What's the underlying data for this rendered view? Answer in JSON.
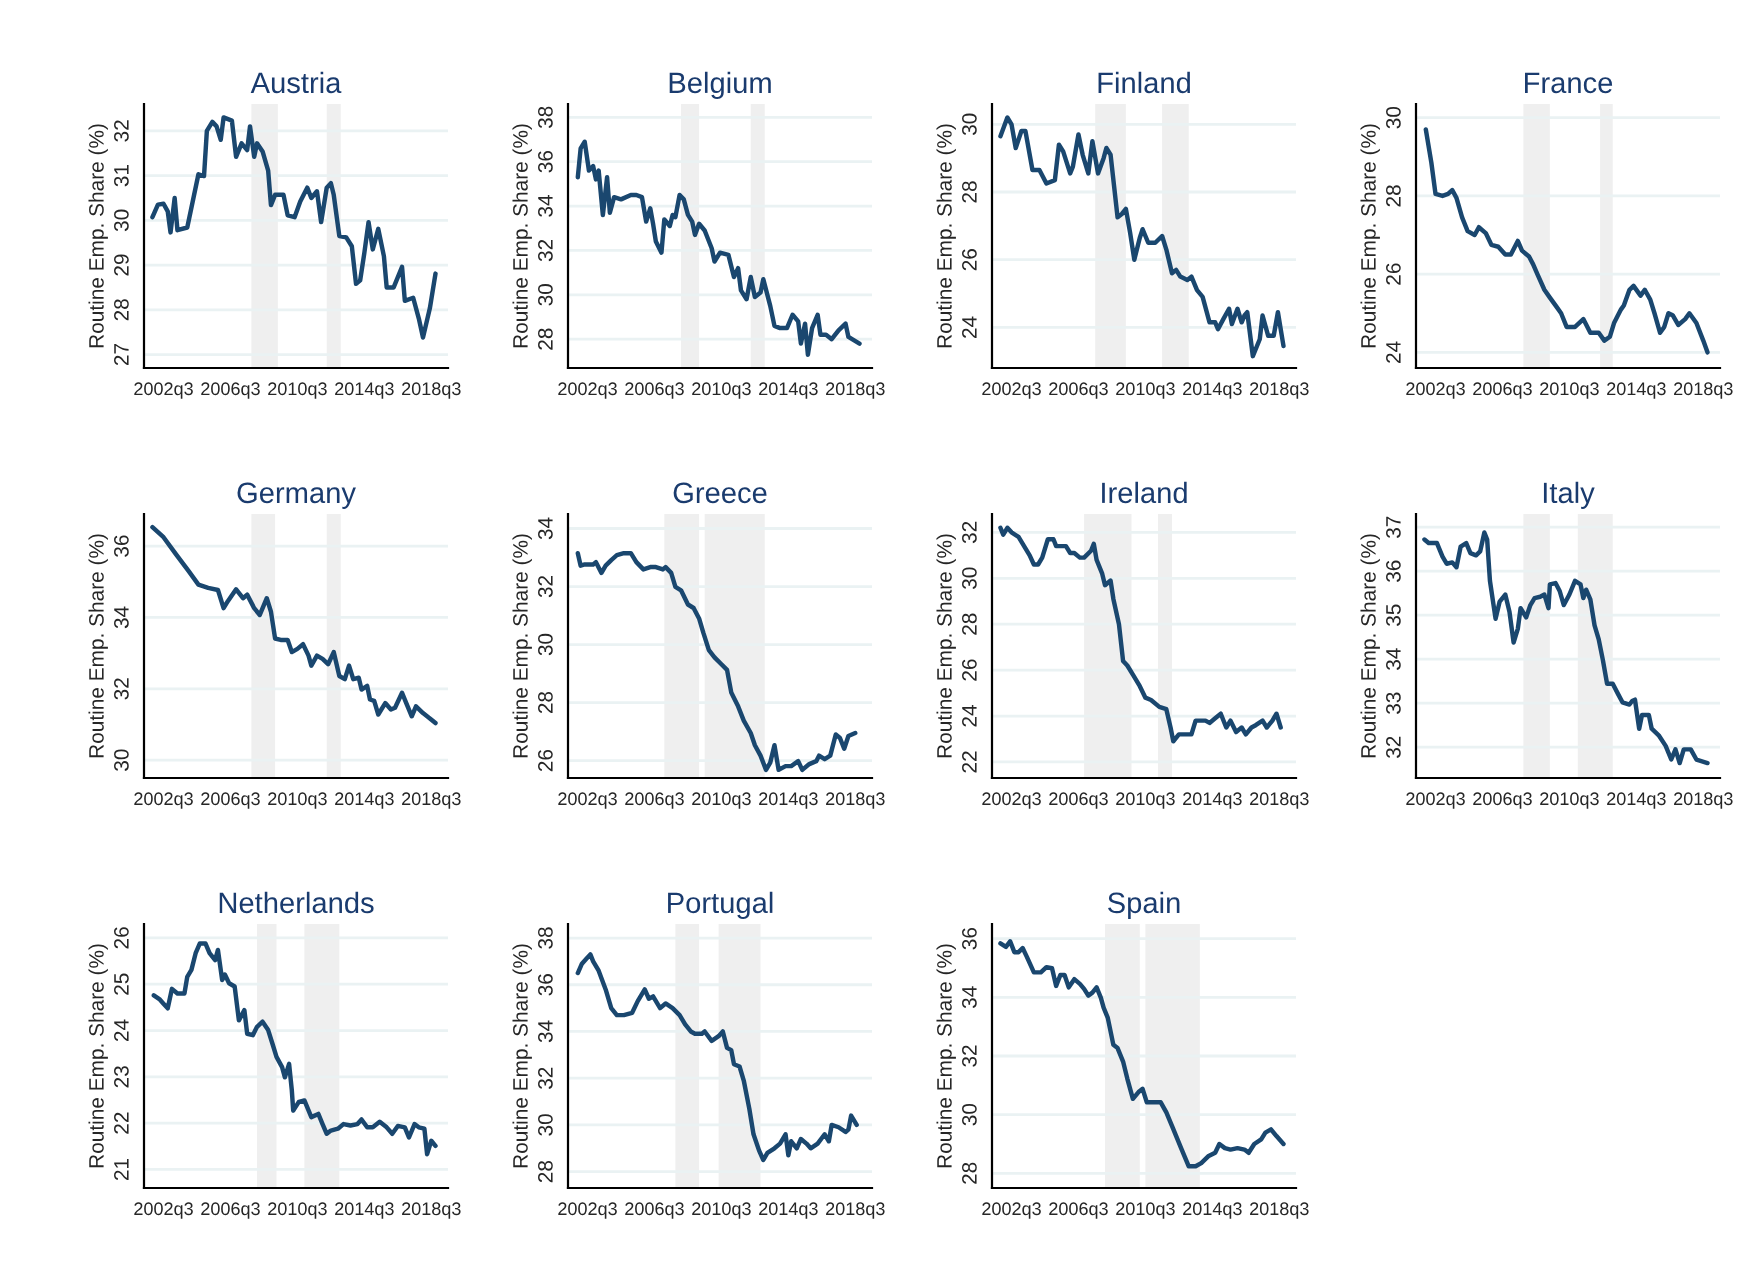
{
  "chart_data": [
    {
      "type": "line",
      "title": "Austria",
      "ylabel": "Routine Emp. Share (%)",
      "grid": "y",
      "xlim": [
        "2001-05",
        "2019-07"
      ],
      "ylim": [
        26.7,
        32.6
      ],
      "yticks": [
        27,
        28,
        29,
        30,
        31,
        32
      ],
      "xticks": [
        {
          "value": "2002-07",
          "label": "2002q3"
        },
        {
          "value": "2006-07",
          "label": "2006q3"
        },
        {
          "value": "2010-07",
          "label": "2010q3"
        },
        {
          "value": "2014-07",
          "label": "2014q3"
        },
        {
          "value": "2018-07",
          "label": "2018q3"
        }
      ],
      "bands": [
        {
          "axis": "x",
          "from": "2007-10",
          "to": "2009-05",
          "color": "#efefef"
        },
        {
          "axis": "x",
          "from": "2012-04",
          "to": "2013-02",
          "color": "#efefef"
        }
      ],
      "x": [
        "2001-11",
        "2002-03",
        "2002-07",
        "2002-10",
        "2002-12",
        "2003-03",
        "2003-05",
        "2003-12",
        "2004-08",
        "2004-12",
        "2005-02",
        "2005-06",
        "2005-09",
        "2005-12",
        "2006-02",
        "2006-08",
        "2006-11",
        "2007-03",
        "2007-07",
        "2007-09",
        "2007-12",
        "2008-02",
        "2008-06",
        "2008-10",
        "2008-12",
        "2009-03",
        "2009-09",
        "2009-12",
        "2010-05",
        "2010-09",
        "2011-02",
        "2011-05",
        "2011-09",
        "2011-12",
        "2012-04",
        "2012-07",
        "2012-09",
        "2013-01",
        "2013-06",
        "2013-10",
        "2014-01",
        "2014-04",
        "2014-07",
        "2014-10",
        "2015-01",
        "2015-05",
        "2015-09",
        "2015-11",
        "2016-04",
        "2016-10",
        "2016-12",
        "2017-06",
        "2017-10",
        "2018-01",
        "2018-06",
        "2018-10"
      ],
      "series": [
        {
          "color": "#1a476f",
          "values": [
            30.07,
            30.35,
            30.37,
            30.2,
            29.73,
            30.5,
            29.78,
            29.84,
            31.03,
            30.99,
            32.0,
            32.2,
            32.1,
            31.8,
            32.3,
            32.23,
            31.42,
            31.72,
            31.57,
            32.1,
            31.42,
            31.72,
            31.54,
            31.11,
            30.34,
            30.57,
            30.57,
            30.11,
            30.07,
            30.42,
            30.73,
            30.5,
            30.65,
            29.96,
            30.73,
            30.83,
            30.57,
            29.65,
            29.62,
            29.42,
            28.58,
            28.66,
            29.27,
            29.96,
            29.35,
            29.81,
            29.2,
            28.5,
            28.5,
            28.96,
            28.2,
            28.27,
            27.81,
            27.38,
            28.04,
            28.81
          ]
        }
      ]
    },
    {
      "type": "line",
      "title": "Belgium",
      "ylabel": "Routine Emp. Share (%)",
      "grid": "y",
      "xlim": [
        "2001-05",
        "2019-07"
      ],
      "ylim": [
        26.7,
        38.6
      ],
      "yticks": [
        28,
        30,
        32,
        34,
        36,
        38
      ],
      "xticks": [
        {
          "value": "2002-07",
          "label": "2002q3"
        },
        {
          "value": "2006-07",
          "label": "2006q3"
        },
        {
          "value": "2010-07",
          "label": "2010q3"
        },
        {
          "value": "2014-07",
          "label": "2014q3"
        },
        {
          "value": "2018-07",
          "label": "2018q3"
        }
      ],
      "bands": [
        {
          "axis": "x",
          "from": "2008-02",
          "to": "2009-03",
          "color": "#efefef"
        },
        {
          "axis": "x",
          "from": "2012-04",
          "to": "2013-02",
          "color": "#efefef"
        }
      ],
      "x": [
        "2001-12",
        "2002-02",
        "2002-05",
        "2002-08",
        "2002-11",
        "2003-01",
        "2003-03",
        "2003-06",
        "2003-09",
        "2003-11",
        "2004-02",
        "2004-07",
        "2005-02",
        "2005-06",
        "2005-10",
        "2006-01",
        "2006-04",
        "2006-06",
        "2006-08",
        "2006-12",
        "2007-02",
        "2007-06",
        "2007-08",
        "2007-10",
        "2008-01",
        "2008-04",
        "2008-07",
        "2008-10",
        "2008-12",
        "2009-03",
        "2009-07",
        "2009-12",
        "2010-02",
        "2010-06",
        "2010-12",
        "2011-04",
        "2011-07",
        "2011-09",
        "2012-01",
        "2012-04",
        "2012-07",
        "2012-11",
        "2013-01",
        "2013-06",
        "2013-09",
        "2014-01",
        "2014-06",
        "2014-10",
        "2015-02",
        "2015-04",
        "2015-07",
        "2015-09",
        "2015-12",
        "2016-04",
        "2016-06",
        "2016-10",
        "2017-02",
        "2017-07",
        "2017-12",
        "2018-02",
        "2018-10"
      ],
      "series": [
        {
          "color": "#1a476f",
          "values": [
            35.3,
            36.6,
            36.9,
            35.6,
            35.8,
            35.2,
            35.6,
            33.6,
            35.3,
            33.7,
            34.4,
            34.3,
            34.5,
            34.5,
            34.4,
            33.3,
            33.9,
            33.2,
            32.4,
            31.9,
            33.4,
            33.1,
            33.6,
            33.5,
            34.5,
            34.3,
            33.6,
            33.3,
            32.7,
            33.2,
            32.9,
            32.1,
            31.5,
            31.9,
            31.8,
            30.8,
            31.2,
            30.2,
            29.8,
            30.8,
            29.9,
            30.1,
            30.7,
            29.5,
            28.6,
            28.5,
            28.5,
            29.1,
            28.8,
            27.8,
            28.7,
            27.3,
            28.5,
            29.1,
            28.2,
            28.2,
            28.0,
            28.4,
            28.7,
            28.1,
            27.8
          ]
        }
      ]
    },
    {
      "type": "line",
      "title": "Finland",
      "ylabel": "Routine Emp. Share (%)",
      "grid": "y",
      "xlim": [
        "2001-05",
        "2019-07"
      ],
      "ylim": [
        22.8,
        30.6
      ],
      "yticks": [
        24,
        26,
        28,
        30
      ],
      "xticks": [
        {
          "value": "2002-07",
          "label": "2002q3"
        },
        {
          "value": "2006-07",
          "label": "2006q3"
        },
        {
          "value": "2010-07",
          "label": "2010q3"
        },
        {
          "value": "2014-07",
          "label": "2014q3"
        },
        {
          "value": "2018-07",
          "label": "2018q3"
        }
      ],
      "bands": [
        {
          "axis": "x",
          "from": "2007-07",
          "to": "2009-05",
          "color": "#efefef"
        },
        {
          "axis": "x",
          "from": "2011-07",
          "to": "2013-02",
          "color": "#efefef"
        }
      ],
      "x": [
        "2001-11",
        "2002-04",
        "2002-07",
        "2002-10",
        "2003-02",
        "2003-05",
        "2003-10",
        "2004-03",
        "2004-08",
        "2005-02",
        "2005-05",
        "2005-08",
        "2006-01",
        "2006-03",
        "2006-07",
        "2006-10",
        "2007-02",
        "2007-05",
        "2007-09",
        "2008-01",
        "2008-03",
        "2008-06",
        "2008-11",
        "2009-02",
        "2009-05",
        "2009-08",
        "2009-11",
        "2010-03",
        "2010-05",
        "2010-09",
        "2011-02",
        "2011-07",
        "2011-10",
        "2012-02",
        "2012-05",
        "2012-08",
        "2013-01",
        "2013-04",
        "2013-08",
        "2013-12",
        "2014-05",
        "2014-09",
        "2014-11",
        "2015-03",
        "2015-07",
        "2015-09",
        "2016-01",
        "2016-04",
        "2016-06",
        "2016-08",
        "2016-12",
        "2017-05",
        "2017-07",
        "2017-11",
        "2018-03",
        "2018-06",
        "2018-10"
      ],
      "series": [
        {
          "color": "#1a476f",
          "values": [
            29.65,
            30.2,
            30.0,
            29.3,
            29.8,
            29.8,
            28.65,
            28.65,
            28.25,
            28.35,
            29.4,
            29.2,
            28.55,
            28.75,
            29.7,
            29.1,
            28.55,
            29.5,
            28.55,
            29.0,
            29.3,
            29.1,
            27.25,
            27.35,
            27.5,
            26.8,
            26.0,
            26.65,
            26.9,
            26.5,
            26.5,
            26.7,
            26.3,
            25.6,
            25.7,
            25.5,
            25.4,
            25.5,
            25.1,
            24.9,
            24.15,
            24.15,
            23.95,
            24.25,
            24.55,
            24.1,
            24.55,
            24.15,
            24.35,
            24.45,
            23.15,
            23.65,
            24.35,
            23.75,
            23.75,
            24.45,
            23.45
          ]
        }
      ]
    },
    {
      "type": "line",
      "title": "France",
      "ylabel": "Routine Emp. Share (%)",
      "grid": "y",
      "xlim": [
        "2001-05",
        "2019-07"
      ],
      "ylim": [
        23.6,
        30.35
      ],
      "yticks": [
        24,
        26,
        28,
        30
      ],
      "xticks": [
        {
          "value": "2002-07",
          "label": "2002q3"
        },
        {
          "value": "2006-07",
          "label": "2006q3"
        },
        {
          "value": "2010-07",
          "label": "2010q3"
        },
        {
          "value": "2014-07",
          "label": "2014q3"
        },
        {
          "value": "2018-07",
          "label": "2018q3"
        }
      ],
      "bands": [
        {
          "axis": "x",
          "from": "2007-10",
          "to": "2009-05",
          "color": "#efefef"
        },
        {
          "axis": "x",
          "from": "2012-05",
          "to": "2013-02",
          "color": "#efefef"
        }
      ],
      "x": [
        "2001-12",
        "2002-04",
        "2002-07",
        "2002-12",
        "2003-04",
        "2003-07",
        "2003-10",
        "2004-02",
        "2004-06",
        "2004-11",
        "2005-02",
        "2005-07",
        "2005-11",
        "2006-04",
        "2006-09",
        "2007-01",
        "2007-06",
        "2007-09",
        "2008-02",
        "2008-05",
        "2008-08",
        "2009-01",
        "2009-05",
        "2009-09",
        "2010-01",
        "2010-05",
        "2010-11",
        "2011-05",
        "2011-10",
        "2012-04",
        "2012-08",
        "2012-12",
        "2013-03",
        "2013-08",
        "2013-10",
        "2014-02",
        "2014-05",
        "2014-10",
        "2015-01",
        "2015-05",
        "2015-08",
        "2015-12",
        "2016-03",
        "2016-06",
        "2016-09",
        "2017-01",
        "2017-06",
        "2017-09",
        "2018-02",
        "2018-07",
        "2018-10"
      ],
      "series": [
        {
          "color": "#1a476f",
          "values": [
            29.7,
            28.85,
            28.05,
            28.0,
            28.05,
            28.15,
            27.95,
            27.45,
            27.1,
            27.0,
            27.2,
            27.05,
            26.75,
            26.7,
            26.5,
            26.5,
            26.85,
            26.6,
            26.45,
            26.25,
            26.0,
            25.6,
            25.4,
            25.2,
            25.0,
            24.65,
            24.65,
            24.85,
            24.5,
            24.5,
            24.3,
            24.4,
            24.75,
            25.1,
            25.2,
            25.6,
            25.7,
            25.45,
            25.6,
            25.35,
            25.0,
            24.5,
            24.65,
            25.0,
            24.95,
            24.7,
            24.85,
            25.0,
            24.75,
            24.3,
            24.0
          ]
        }
      ]
    },
    {
      "type": "line",
      "title": "Germany",
      "ylabel": "Routine Emp. Share (%)",
      "grid": "y",
      "xlim": [
        "2001-05",
        "2019-07"
      ],
      "ylim": [
        29.5,
        36.9
      ],
      "yticks": [
        30,
        32,
        34,
        36
      ],
      "xticks": [
        {
          "value": "2002-07",
          "label": "2002q3"
        },
        {
          "value": "2006-07",
          "label": "2006q3"
        },
        {
          "value": "2010-07",
          "label": "2010q3"
        },
        {
          "value": "2014-07",
          "label": "2014q3"
        },
        {
          "value": "2018-07",
          "label": "2018q3"
        }
      ],
      "bands": [
        {
          "axis": "x",
          "from": "2007-10",
          "to": "2009-03",
          "color": "#efefef"
        },
        {
          "axis": "x",
          "from": "2012-04",
          "to": "2013-02",
          "color": "#efefef"
        }
      ],
      "x": [
        "2001-11",
        "2002-07",
        "2003-04",
        "2004-01",
        "2004-08",
        "2005-03",
        "2005-10",
        "2006-02",
        "2006-05",
        "2006-11",
        "2007-04",
        "2007-07",
        "2007-12",
        "2008-04",
        "2008-09",
        "2008-12",
        "2009-03",
        "2009-07",
        "2009-12",
        "2010-03",
        "2010-07",
        "2010-11",
        "2011-03",
        "2011-05",
        "2011-09",
        "2012-01",
        "2012-05",
        "2012-09",
        "2013-01",
        "2013-05",
        "2013-08",
        "2013-11",
        "2014-03",
        "2014-05",
        "2014-09",
        "2014-11",
        "2015-02",
        "2015-05",
        "2015-10",
        "2016-02",
        "2016-05",
        "2016-10",
        "2017-01",
        "2017-05",
        "2017-08",
        "2018-01",
        "2018-06",
        "2018-10"
      ],
      "series": [
        {
          "color": "#1a476f",
          "values": [
            36.53,
            36.25,
            35.77,
            35.3,
            34.92,
            34.83,
            34.77,
            34.26,
            34.45,
            34.79,
            34.54,
            34.64,
            34.26,
            34.07,
            34.54,
            34.16,
            33.41,
            33.37,
            33.37,
            33.03,
            33.12,
            33.25,
            32.93,
            32.65,
            32.93,
            32.84,
            32.69,
            33.03,
            32.36,
            32.27,
            32.65,
            32.27,
            32.31,
            31.98,
            32.08,
            31.7,
            31.66,
            31.28,
            31.6,
            31.42,
            31.47,
            31.89,
            31.6,
            31.23,
            31.51,
            31.32,
            31.17,
            31.04
          ]
        }
      ]
    },
    {
      "type": "line",
      "title": "Greece",
      "ylabel": "Routine Emp. Share (%)",
      "grid": "y",
      "xlim": [
        "2001-05",
        "2019-07"
      ],
      "ylim": [
        25.4,
        34.5
      ],
      "yticks": [
        26,
        28,
        30,
        32,
        34
      ],
      "xticks": [
        {
          "value": "2002-07",
          "label": "2002q3"
        },
        {
          "value": "2006-07",
          "label": "2006q3"
        },
        {
          "value": "2010-07",
          "label": "2010q3"
        },
        {
          "value": "2014-07",
          "label": "2014q3"
        },
        {
          "value": "2018-07",
          "label": "2018q3"
        }
      ],
      "bands": [
        {
          "axis": "x",
          "from": "2007-02",
          "to": "2009-03",
          "color": "#efefef"
        },
        {
          "axis": "x",
          "from": "2009-07",
          "to": "2013-02",
          "color": "#efefef"
        }
      ],
      "x": [
        "2001-12",
        "2002-02",
        "2002-05",
        "2002-11",
        "2003-01",
        "2003-05",
        "2003-08",
        "2003-12",
        "2004-04",
        "2004-09",
        "2005-02",
        "2005-06",
        "2005-11",
        "2006-04",
        "2006-08",
        "2007-01",
        "2007-03",
        "2007-07",
        "2007-10",
        "2008-02",
        "2008-07",
        "2008-11",
        "2009-03",
        "2009-06",
        "2009-10",
        "2010-02",
        "2010-07",
        "2010-11",
        "2011-02",
        "2011-07",
        "2011-11",
        "2012-04",
        "2012-07",
        "2012-11",
        "2013-03",
        "2013-06",
        "2013-09",
        "2013-12",
        "2014-05",
        "2014-09",
        "2015-02",
        "2015-05",
        "2015-10",
        "2016-03",
        "2016-05",
        "2016-09",
        "2017-01",
        "2017-05",
        "2017-08",
        "2017-11",
        "2018-02",
        "2018-07"
      ],
      "series": [
        {
          "color": "#1a476f",
          "values": [
            33.15,
            32.72,
            32.76,
            32.76,
            32.84,
            32.47,
            32.72,
            32.91,
            33.08,
            33.15,
            33.15,
            32.84,
            32.59,
            32.67,
            32.67,
            32.59,
            32.67,
            32.47,
            31.99,
            31.87,
            31.38,
            31.26,
            30.9,
            30.41,
            29.81,
            29.56,
            29.32,
            29.13,
            28.35,
            27.87,
            27.38,
            26.95,
            26.53,
            26.17,
            25.68,
            25.93,
            26.53,
            25.68,
            25.81,
            25.81,
            25.98,
            25.68,
            25.88,
            25.98,
            26.17,
            26.05,
            26.17,
            26.9,
            26.78,
            26.41,
            26.85,
            26.95
          ]
        }
      ]
    },
    {
      "type": "line",
      "title": "Ireland",
      "ylabel": "Routine Emp. Share (%)",
      "grid": "y",
      "xlim": [
        "2001-05",
        "2019-07"
      ],
      "ylim": [
        21.3,
        32.8
      ],
      "yticks": [
        22,
        24,
        26,
        28,
        30,
        32
      ],
      "xticks": [
        {
          "value": "2002-07",
          "label": "2002q3"
        },
        {
          "value": "2006-07",
          "label": "2006q3"
        },
        {
          "value": "2010-07",
          "label": "2010q3"
        },
        {
          "value": "2014-07",
          "label": "2014q3"
        },
        {
          "value": "2018-07",
          "label": "2018q3"
        }
      ],
      "bands": [
        {
          "axis": "x",
          "from": "2006-11",
          "to": "2009-09",
          "color": "#efefef"
        },
        {
          "axis": "x",
          "from": "2011-04",
          "to": "2012-02",
          "color": "#efefef"
        }
      ],
      "x": [
        "2001-11",
        "2002-01",
        "2002-04",
        "2002-07",
        "2002-12",
        "2003-05",
        "2003-08",
        "2003-11",
        "2004-02",
        "2004-05",
        "2004-09",
        "2005-01",
        "2005-03",
        "2005-07",
        "2005-10",
        "2006-01",
        "2006-04",
        "2006-08",
        "2006-11",
        "2007-04",
        "2007-06",
        "2007-08",
        "2007-12",
        "2008-02",
        "2008-06",
        "2008-08",
        "2008-12",
        "2009-03",
        "2009-06",
        "2009-10",
        "2010-03",
        "2010-07",
        "2010-11",
        "2011-05",
        "2011-10",
        "2012-01",
        "2012-03",
        "2012-07",
        "2012-12",
        "2013-04",
        "2013-07",
        "2013-10",
        "2014-02",
        "2014-05",
        "2014-09",
        "2015-01",
        "2015-05",
        "2015-08",
        "2015-12",
        "2016-04",
        "2016-07",
        "2016-11",
        "2017-02",
        "2017-07",
        "2017-10",
        "2018-02",
        "2018-05",
        "2018-08"
      ],
      "series": [
        {
          "color": "#1a476f",
          "values": [
            32.2,
            31.9,
            32.2,
            32.0,
            31.8,
            31.3,
            31.0,
            30.6,
            30.6,
            30.9,
            31.7,
            31.7,
            31.4,
            31.4,
            31.4,
            31.1,
            31.1,
            30.9,
            30.9,
            31.2,
            31.5,
            30.8,
            30.2,
            29.7,
            29.9,
            29.1,
            28.0,
            26.4,
            26.2,
            25.8,
            25.3,
            24.8,
            24.7,
            24.4,
            24.3,
            23.5,
            22.9,
            23.2,
            23.2,
            23.2,
            23.8,
            23.8,
            23.8,
            23.7,
            23.9,
            24.1,
            23.5,
            23.8,
            23.3,
            23.5,
            23.2,
            23.5,
            23.6,
            23.8,
            23.5,
            23.8,
            24.1,
            23.5
          ]
        }
      ]
    },
    {
      "type": "line",
      "title": "Italy",
      "ylabel": "Routine Emp. Share (%)",
      "grid": "y",
      "xlim": [
        "2001-05",
        "2019-07"
      ],
      "ylim": [
        31.3,
        37.3
      ],
      "yticks": [
        32,
        33,
        34,
        35,
        36,
        37
      ],
      "xticks": [
        {
          "value": "2002-07",
          "label": "2002q3"
        },
        {
          "value": "2006-07",
          "label": "2006q3"
        },
        {
          "value": "2010-07",
          "label": "2010q3"
        },
        {
          "value": "2014-07",
          "label": "2014q3"
        },
        {
          "value": "2018-07",
          "label": "2018q3"
        }
      ],
      "bands": [
        {
          "axis": "x",
          "from": "2007-10",
          "to": "2009-05",
          "color": "#efefef"
        },
        {
          "axis": "x",
          "from": "2011-01",
          "to": "2013-02",
          "color": "#efefef"
        }
      ],
      "x": [
        "2001-11",
        "2002-02",
        "2002-05",
        "2002-08",
        "2002-12",
        "2003-03",
        "2003-07",
        "2003-10",
        "2004-01",
        "2004-05",
        "2004-08",
        "2004-12",
        "2005-03",
        "2005-06",
        "2005-08",
        "2005-10",
        "2006-02",
        "2006-05",
        "2006-09",
        "2006-12",
        "2007-03",
        "2007-06",
        "2007-08",
        "2007-12",
        "2008-03",
        "2008-06",
        "2008-10",
        "2009-01",
        "2009-04",
        "2009-05",
        "2009-09",
        "2009-12",
        "2010-03",
        "2010-07",
        "2010-11",
        "2011-03",
        "2011-05",
        "2011-07",
        "2011-10",
        "2012-01",
        "2012-04",
        "2012-07",
        "2012-10",
        "2013-02",
        "2013-06",
        "2013-09",
        "2014-02",
        "2014-04",
        "2014-06",
        "2014-09",
        "2014-11",
        "2015-04",
        "2015-06",
        "2015-11",
        "2016-04",
        "2016-08",
        "2016-11",
        "2017-02",
        "2017-05",
        "2017-10",
        "2018-02",
        "2018-10"
      ],
      "series": [
        {
          "color": "#1a476f",
          "values": [
            36.72,
            36.64,
            36.64,
            36.64,
            36.33,
            36.17,
            36.2,
            36.09,
            36.56,
            36.64,
            36.41,
            36.36,
            36.45,
            36.88,
            36.72,
            35.78,
            34.92,
            35.31,
            35.47,
            35.08,
            34.38,
            34.69,
            35.16,
            34.95,
            35.23,
            35.39,
            35.42,
            35.47,
            35.16,
            35.7,
            35.73,
            35.55,
            35.23,
            35.47,
            35.78,
            35.7,
            35.39,
            35.58,
            35.36,
            34.77,
            34.45,
            33.98,
            33.44,
            33.44,
            33.2,
            33.02,
            32.97,
            33.05,
            33.08,
            32.42,
            32.73,
            32.73,
            32.42,
            32.27,
            32.03,
            31.72,
            31.95,
            31.64,
            31.95,
            31.95,
            31.72,
            31.64
          ]
        }
      ]
    },
    {
      "type": "line",
      "title": "Netherlands",
      "ylabel": "Routine Emp. Share (%)",
      "grid": "y",
      "xlim": [
        "2001-05",
        "2019-07"
      ],
      "ylim": [
        20.6,
        26.3
      ],
      "yticks": [
        21,
        22,
        23,
        24,
        25,
        26
      ],
      "xticks": [
        {
          "value": "2002-07",
          "label": "2002q3"
        },
        {
          "value": "2006-07",
          "label": "2006q3"
        },
        {
          "value": "2010-07",
          "label": "2010q3"
        },
        {
          "value": "2014-07",
          "label": "2014q3"
        },
        {
          "value": "2018-07",
          "label": "2018q3"
        }
      ],
      "bands": [
        {
          "axis": "x",
          "from": "2008-02",
          "to": "2009-04",
          "color": "#efefef"
        },
        {
          "axis": "x",
          "from": "2010-12",
          "to": "2013-01",
          "color": "#efefef"
        }
      ],
      "x": [
        "2001-12",
        "2002-04",
        "2002-07",
        "2002-10",
        "2003-01",
        "2003-05",
        "2003-10",
        "2003-12",
        "2004-03",
        "2004-06",
        "2004-09",
        "2005-01",
        "2005-04",
        "2005-08",
        "2005-10",
        "2006-01",
        "2006-03",
        "2006-06",
        "2006-10",
        "2007-01",
        "2007-05",
        "2007-07",
        "2007-11",
        "2008-02",
        "2008-06",
        "2008-10",
        "2009-01",
        "2009-04",
        "2009-08",
        "2009-10",
        "2010-01",
        "2010-03",
        "2010-04",
        "2010-08",
        "2010-12",
        "2011-05",
        "2011-10",
        "2012-01",
        "2012-04",
        "2012-07",
        "2012-12",
        "2013-04",
        "2013-09",
        "2014-02",
        "2014-05",
        "2014-09",
        "2015-01",
        "2015-06",
        "2015-11",
        "2016-03",
        "2016-07",
        "2016-12",
        "2017-03",
        "2017-07",
        "2017-10",
        "2018-02",
        "2018-04",
        "2018-07",
        "2018-10"
      ],
      "series": [
        {
          "color": "#1a476f",
          "values": [
            24.76,
            24.68,
            24.58,
            24.48,
            24.9,
            24.8,
            24.8,
            25.16,
            25.31,
            25.67,
            25.88,
            25.88,
            25.67,
            25.52,
            25.74,
            25.09,
            25.21,
            25.02,
            24.95,
            24.22,
            24.44,
            23.93,
            23.9,
            24.08,
            24.19,
            24.01,
            23.72,
            23.43,
            23.21,
            22.99,
            23.28,
            22.71,
            22.27,
            22.46,
            22.49,
            22.13,
            22.2,
            21.98,
            21.77,
            21.84,
            21.88,
            21.98,
            21.95,
            21.98,
            22.08,
            21.91,
            21.91,
            22.03,
            21.91,
            21.77,
            21.94,
            21.91,
            21.69,
            21.98,
            21.91,
            21.88,
            21.33,
            21.62,
            21.51
          ]
        }
      ]
    },
    {
      "type": "line",
      "title": "Portugal",
      "ylabel": "Routine Emp. Share (%)",
      "grid": "y",
      "xlim": [
        "2001-05",
        "2019-07"
      ],
      "ylim": [
        27.3,
        38.6
      ],
      "yticks": [
        28,
        30,
        32,
        34,
        36,
        38
      ],
      "xticks": [
        {
          "value": "2002-07",
          "label": "2002q3"
        },
        {
          "value": "2006-07",
          "label": "2006q3"
        },
        {
          "value": "2010-07",
          "label": "2010q3"
        },
        {
          "value": "2014-07",
          "label": "2014q3"
        },
        {
          "value": "2018-07",
          "label": "2018q3"
        }
      ],
      "bands": [
        {
          "axis": "x",
          "from": "2007-10",
          "to": "2009-03",
          "color": "#efefef"
        },
        {
          "axis": "x",
          "from": "2010-05",
          "to": "2012-11",
          "color": "#efefef"
        }
      ],
      "x": [
        "2001-12",
        "2002-03",
        "2002-06",
        "2002-09",
        "2002-11",
        "2003-03",
        "2003-08",
        "2003-12",
        "2004-04",
        "2004-09",
        "2005-03",
        "2005-07",
        "2005-12",
        "2006-03",
        "2006-06",
        "2006-11",
        "2007-03",
        "2007-08",
        "2008-01",
        "2008-05",
        "2008-09",
        "2008-12",
        "2009-05",
        "2009-07",
        "2009-12",
        "2010-05",
        "2010-08",
        "2010-11",
        "2011-02",
        "2011-04",
        "2011-08",
        "2011-11",
        "2012-03",
        "2012-06",
        "2012-10",
        "2013-01",
        "2013-04",
        "2013-09",
        "2014-01",
        "2014-05",
        "2014-07",
        "2014-09",
        "2015-01",
        "2015-04",
        "2015-08",
        "2015-11",
        "2016-04",
        "2016-09",
        "2016-12",
        "2017-02",
        "2017-07",
        "2017-12",
        "2018-02",
        "2018-04",
        "2018-08"
      ],
      "series": [
        {
          "color": "#1a476f",
          "values": [
            36.5,
            36.9,
            37.1,
            37.3,
            37.0,
            36.6,
            35.8,
            35.0,
            34.7,
            34.7,
            34.8,
            35.3,
            35.8,
            35.4,
            35.5,
            35.0,
            35.2,
            35.0,
            34.7,
            34.3,
            34.0,
            33.9,
            33.9,
            34.0,
            33.6,
            33.8,
            34.0,
            33.3,
            33.2,
            32.6,
            32.5,
            31.9,
            30.7,
            29.6,
            28.9,
            28.5,
            28.8,
            29.0,
            29.2,
            29.6,
            28.7,
            29.3,
            29.0,
            29.4,
            29.2,
            29.0,
            29.2,
            29.6,
            29.3,
            30.0,
            29.9,
            29.7,
            29.8,
            30.4,
            30.0
          ]
        }
      ]
    },
    {
      "type": "line",
      "title": "Spain",
      "ylabel": "Routine Emp. Share (%)",
      "grid": "y",
      "xlim": [
        "2001-05",
        "2019-07"
      ],
      "ylim": [
        27.5,
        36.5
      ],
      "yticks": [
        28,
        30,
        32,
        34,
        36
      ],
      "xticks": [
        {
          "value": "2002-07",
          "label": "2002q3"
        },
        {
          "value": "2006-07",
          "label": "2006q3"
        },
        {
          "value": "2010-07",
          "label": "2010q3"
        },
        {
          "value": "2014-07",
          "label": "2014q3"
        },
        {
          "value": "2018-07",
          "label": "2018q3"
        }
      ],
      "bands": [
        {
          "axis": "x",
          "from": "2008-02",
          "to": "2010-03",
          "color": "#efefef"
        },
        {
          "axis": "x",
          "from": "2010-07",
          "to": "2013-10",
          "color": "#efefef"
        }
      ],
      "x": [
        "2001-11",
        "2002-03",
        "2002-06",
        "2002-09",
        "2002-12",
        "2003-03",
        "2003-06",
        "2003-11",
        "2004-04",
        "2004-08",
        "2004-12",
        "2005-03",
        "2005-06",
        "2005-09",
        "2005-12",
        "2006-04",
        "2006-08",
        "2006-11",
        "2007-02",
        "2007-05",
        "2007-08",
        "2007-11",
        "2008-01",
        "2008-04",
        "2008-08",
        "2008-11",
        "2009-03",
        "2009-06",
        "2009-10",
        "2010-02",
        "2010-05",
        "2010-08",
        "2011-01",
        "2011-06",
        "2011-10",
        "2012-02",
        "2012-06",
        "2012-09",
        "2013-02",
        "2013-07",
        "2013-11",
        "2014-04",
        "2014-09",
        "2014-12",
        "2015-04",
        "2015-08",
        "2016-01",
        "2016-06",
        "2016-09",
        "2017-01",
        "2017-06",
        "2017-09",
        "2018-01",
        "2018-05",
        "2018-10"
      ],
      "series": [
        {
          "color": "#1a476f",
          "values": [
            35.84,
            35.72,
            35.91,
            35.54,
            35.54,
            35.68,
            35.38,
            34.85,
            34.85,
            35.03,
            34.99,
            34.39,
            34.76,
            34.76,
            34.34,
            34.62,
            34.46,
            34.29,
            34.06,
            34.16,
            34.34,
            33.99,
            33.65,
            33.3,
            32.38,
            32.27,
            31.81,
            31.23,
            30.54,
            30.77,
            30.88,
            30.42,
            30.42,
            30.42,
            30.08,
            29.62,
            29.16,
            28.81,
            28.24,
            28.24,
            28.35,
            28.58,
            28.7,
            29.0,
            28.86,
            28.81,
            28.86,
            28.81,
            28.7,
            29.0,
            29.16,
            29.39,
            29.5,
            29.27,
            29.0
          ]
        }
      ]
    }
  ]
}
